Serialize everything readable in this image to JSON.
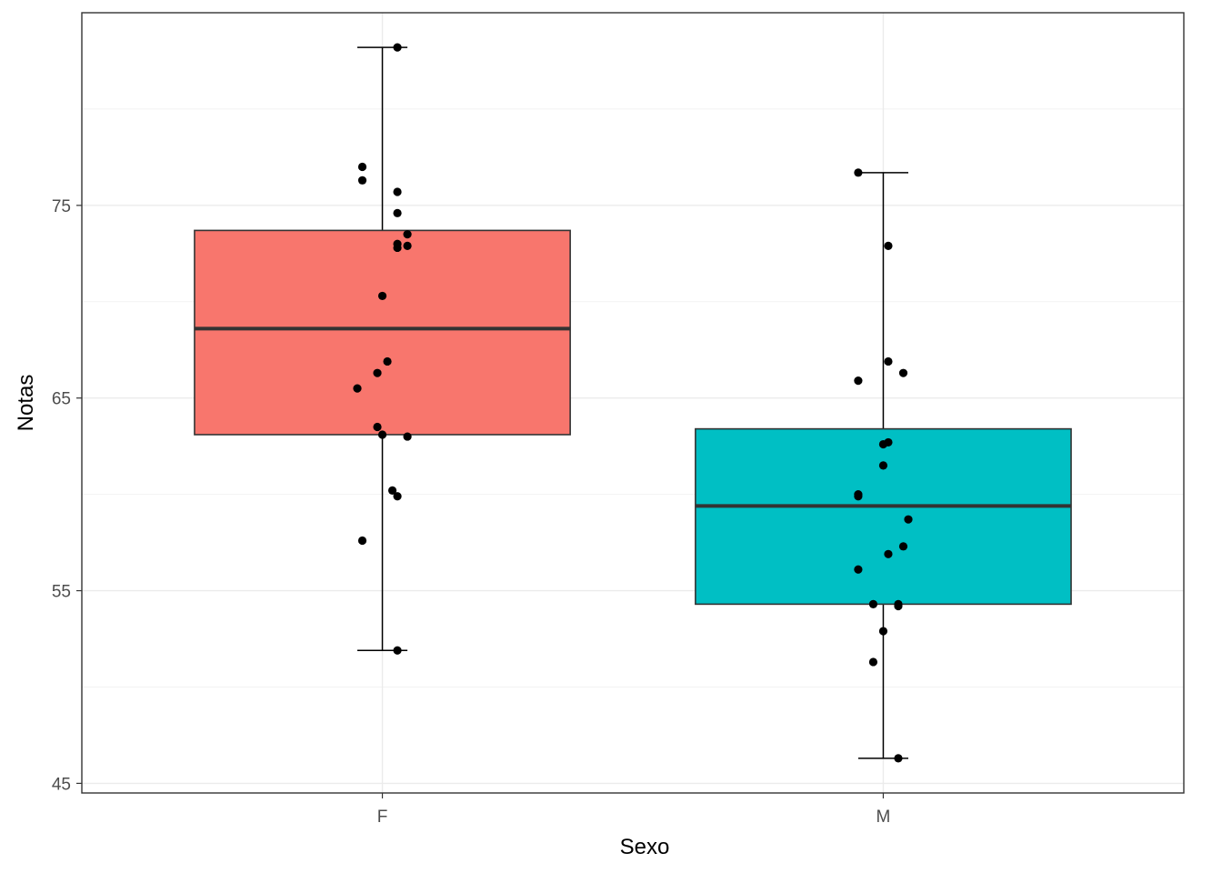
{
  "chart_data": {
    "type": "boxplot",
    "title": "",
    "xlabel": "Sexo",
    "ylabel": "Notas",
    "ylim": [
      44.5,
      85.0
    ],
    "yticks": [
      45,
      55,
      65,
      75
    ],
    "grid": true,
    "legend": "none",
    "colors": {
      "F": "#F8766D",
      "M": "#00BFC4",
      "box_line": "#333333",
      "points": "#000000",
      "grid_major": "#EBEBEB",
      "grid_minor": "#F2F2F2",
      "panel_border": "#333333"
    },
    "categories": [
      "F",
      "M"
    ],
    "boxes": [
      {
        "category": "F",
        "lower_whisker": 51.9,
        "q1": 63.1,
        "median": 68.6,
        "q3": 73.7,
        "upper_whisker": 83.2
      },
      {
        "category": "M",
        "lower_whisker": 46.3,
        "q1": 54.3,
        "median": 59.4,
        "q3": 63.4,
        "upper_whisker": 76.7
      }
    ],
    "points": [
      {
        "category": "F",
        "x": 1.03,
        "y": 83.2
      },
      {
        "category": "F",
        "x": 0.96,
        "y": 77.0
      },
      {
        "category": "F",
        "x": 0.96,
        "y": 76.3
      },
      {
        "category": "F",
        "x": 1.03,
        "y": 75.7
      },
      {
        "category": "F",
        "x": 1.03,
        "y": 74.6
      },
      {
        "category": "F",
        "x": 1.05,
        "y": 73.5
      },
      {
        "category": "F",
        "x": 1.03,
        "y": 73.0
      },
      {
        "category": "F",
        "x": 1.05,
        "y": 72.9
      },
      {
        "category": "F",
        "x": 1.03,
        "y": 72.8
      },
      {
        "category": "F",
        "x": 1.0,
        "y": 70.3
      },
      {
        "category": "F",
        "x": 1.01,
        "y": 66.9
      },
      {
        "category": "F",
        "x": 0.99,
        "y": 66.3
      },
      {
        "category": "F",
        "x": 0.95,
        "y": 65.5
      },
      {
        "category": "F",
        "x": 0.99,
        "y": 63.5
      },
      {
        "category": "F",
        "x": 1.0,
        "y": 63.1
      },
      {
        "category": "F",
        "x": 1.05,
        "y": 63.0
      },
      {
        "category": "F",
        "x": 1.02,
        "y": 60.2
      },
      {
        "category": "F",
        "x": 1.03,
        "y": 59.9
      },
      {
        "category": "F",
        "x": 0.96,
        "y": 57.6
      },
      {
        "category": "F",
        "x": 1.03,
        "y": 51.9
      },
      {
        "category": "M",
        "x": 1.95,
        "y": 76.7
      },
      {
        "category": "M",
        "x": 2.01,
        "y": 72.9
      },
      {
        "category": "M",
        "x": 2.01,
        "y": 66.9
      },
      {
        "category": "M",
        "x": 2.04,
        "y": 66.3
      },
      {
        "category": "M",
        "x": 1.95,
        "y": 65.9
      },
      {
        "category": "M",
        "x": 2.01,
        "y": 62.7
      },
      {
        "category": "M",
        "x": 2.0,
        "y": 62.6
      },
      {
        "category": "M",
        "x": 2.0,
        "y": 61.5
      },
      {
        "category": "M",
        "x": 1.95,
        "y": 60.0
      },
      {
        "category": "M",
        "x": 1.95,
        "y": 59.9
      },
      {
        "category": "M",
        "x": 2.05,
        "y": 58.7
      },
      {
        "category": "M",
        "x": 2.04,
        "y": 57.3
      },
      {
        "category": "M",
        "x": 2.01,
        "y": 56.9
      },
      {
        "category": "M",
        "x": 1.95,
        "y": 56.1
      },
      {
        "category": "M",
        "x": 1.98,
        "y": 54.3
      },
      {
        "category": "M",
        "x": 2.03,
        "y": 54.3
      },
      {
        "category": "M",
        "x": 2.03,
        "y": 54.2
      },
      {
        "category": "M",
        "x": 2.0,
        "y": 52.9
      },
      {
        "category": "M",
        "x": 1.98,
        "y": 51.3
      },
      {
        "category": "M",
        "x": 2.03,
        "y": 46.3
      }
    ]
  }
}
